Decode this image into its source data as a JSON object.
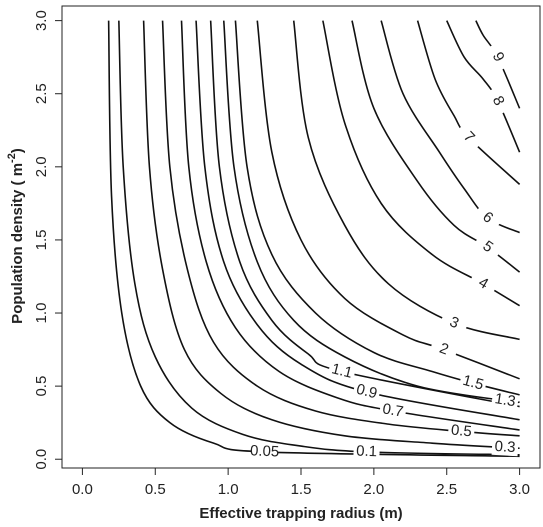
{
  "chart_data": {
    "type": "contour",
    "x_label": "Effective trapping radius  (m)",
    "y_label": [
      "Population density  ( m",
      "-2",
      ")"
    ],
    "xlim": [
      -0.14,
      3.14
    ],
    "ylim": [
      -0.06,
      3.1
    ],
    "xticks": [
      {
        "value": 0,
        "label": "0.0"
      },
      0.5,
      {
        "value": 1,
        "label": "1.0"
      },
      1.5,
      {
        "value": 2,
        "label": "2.0"
      },
      2.5,
      {
        "value": 3,
        "label": "3.0"
      }
    ],
    "yticks": [
      {
        "value": 0,
        "label": "0.0"
      },
      0.5,
      {
        "value": 1,
        "label": "1.0"
      },
      1.5,
      {
        "value": 2,
        "label": "2.0"
      },
      2.5,
      {
        "value": 3,
        "label": "3.0"
      }
    ],
    "color": "#111",
    "contours": [
      {
        "level": 0.05,
        "x": [
          0.18,
          0.2,
          0.27,
          0.4,
          0.6,
          0.9,
          1.25,
          3.0
        ],
        "y": [
          3,
          1.8,
          1.0,
          0.5,
          0.25,
          0.11,
          0.05,
          0.02
        ]
      },
      {
        "level": 0.1,
        "x": [
          0.25,
          0.28,
          0.36,
          0.5,
          0.75,
          1.1,
          1.5,
          1.95,
          3.0
        ],
        "y": [
          3,
          2,
          1.2,
          0.7,
          0.35,
          0.17,
          0.09,
          0.05,
          0.03
        ]
      },
      {
        "level": 0.3,
        "x": [
          0.42,
          0.46,
          0.55,
          0.7,
          0.95,
          1.3,
          1.8,
          2.4,
          2.9,
          3.0
        ],
        "y": [
          3,
          2,
          1.3,
          0.75,
          0.45,
          0.27,
          0.16,
          0.11,
          0.08,
          0.075
        ]
      },
      {
        "level": 0.5,
        "x": [
          0.55,
          0.6,
          0.72,
          0.9,
          1.2,
          1.6,
          2.1,
          2.6,
          3.0
        ],
        "y": [
          3,
          2,
          1.3,
          0.8,
          0.5,
          0.33,
          0.24,
          0.19,
          0.16
        ]
      },
      {
        "level": 0.7,
        "x": [
          0.68,
          0.73,
          0.85,
          1.05,
          1.35,
          1.75,
          2.13,
          3.0
        ],
        "y": [
          3,
          2,
          1.35,
          0.9,
          0.6,
          0.42,
          0.33,
          0.2
        ]
      },
      {
        "level": 0.9,
        "x": [
          0.78,
          0.84,
          0.97,
          1.2,
          1.5,
          1.95,
          3.0
        ],
        "y": [
          3,
          2,
          1.35,
          0.92,
          0.65,
          0.46,
          0.27
        ]
      },
      {
        "level": 1.1,
        "x": [
          0.88,
          0.94,
          1.08,
          1.3,
          1.55,
          1.78,
          3.0
        ],
        "y": [
          3,
          2,
          1.35,
          0.95,
          0.72,
          0.6,
          0.36
        ]
      },
      {
        "level": 1.3,
        "x": [
          0.97,
          1.04,
          1.2,
          1.45,
          1.8,
          2.3,
          2.9,
          3.0
        ],
        "y": [
          3,
          2,
          1.35,
          0.95,
          0.7,
          0.5,
          0.4,
          0.39
        ]
      },
      {
        "level": 1.5,
        "x": [
          1.05,
          1.13,
          1.3,
          1.6,
          2.0,
          2.4,
          2.68,
          3.0
        ],
        "y": [
          3,
          2,
          1.4,
          1.0,
          0.73,
          0.6,
          0.52,
          0.44
        ]
      },
      {
        "level": 2,
        "x": [
          1.2,
          1.3,
          1.5,
          1.8,
          2.2,
          2.48,
          3.0
        ],
        "y": [
          3,
          2.1,
          1.5,
          1.1,
          0.85,
          0.75,
          0.55
        ]
      },
      {
        "level": 3,
        "x": [
          1.45,
          1.55,
          1.8,
          2.1,
          2.55,
          3.0
        ],
        "y": [
          3,
          2.2,
          1.6,
          1.2,
          0.93,
          0.82
        ]
      },
      {
        "level": 4,
        "x": [
          1.65,
          1.8,
          2.05,
          2.4,
          2.75,
          3.0
        ],
        "y": [
          3,
          2.3,
          1.75,
          1.4,
          1.2,
          1.05
        ]
      },
      {
        "level": 5,
        "x": [
          1.85,
          2.0,
          2.3,
          2.55,
          2.78,
          3.0
        ],
        "y": [
          3,
          2.4,
          1.9,
          1.6,
          1.45,
          1.28
        ]
      },
      {
        "level": 6,
        "x": [
          2.05,
          2.2,
          2.45,
          2.62,
          2.78,
          3.0
        ],
        "y": [
          3,
          2.5,
          2.1,
          1.85,
          1.65,
          1.55
        ]
      },
      {
        "level": 7,
        "x": [
          2.3,
          2.42,
          2.55,
          2.65,
          3.0
        ],
        "y": [
          3,
          2.6,
          2.35,
          2.2,
          1.88
        ]
      },
      {
        "level": 8,
        "x": [
          2.5,
          2.62,
          2.75,
          2.85,
          3.0
        ],
        "y": [
          3,
          2.75,
          2.6,
          2.45,
          2.1
        ]
      },
      {
        "level": 9,
        "x": [
          2.7,
          2.75,
          2.85,
          3.0
        ],
        "y": [
          3,
          2.9,
          2.75,
          2.4
        ]
      }
    ]
  }
}
